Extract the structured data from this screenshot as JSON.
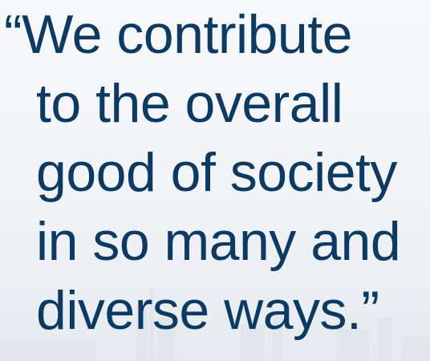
{
  "quote": {
    "lines": [
      "“We contribute",
      "to the overall",
      "good of society",
      "in so many and",
      "diverse ways.”"
    ]
  }
}
